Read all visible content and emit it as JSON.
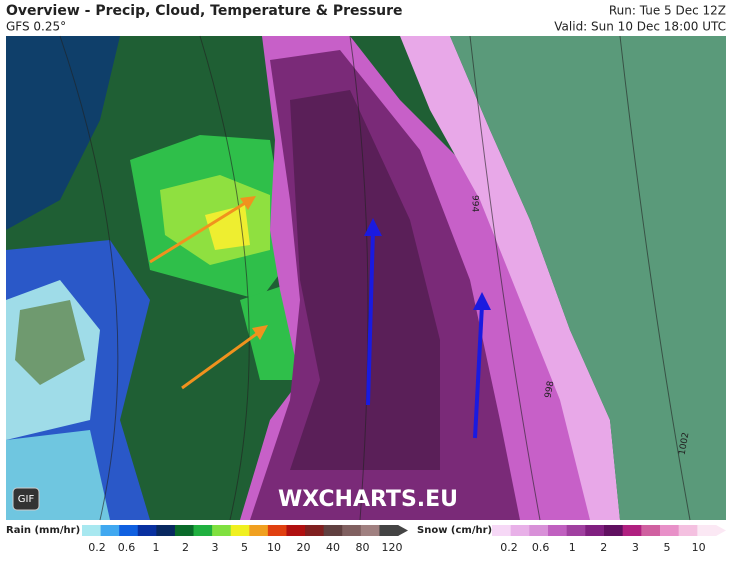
{
  "header": {
    "title": "Overview - Precip, Cloud, Temperature & Pressure",
    "model": "GFS 0.25°",
    "run": "Run: Tue 5 Dec 12Z",
    "valid": "Valid: Sun 10 Dec 18:00 UTC"
  },
  "map": {
    "badge": "GIF",
    "watermark": "WXCHARTS.EU",
    "isobars": [
      "994",
      "998",
      "1002"
    ]
  },
  "legend": {
    "rain": {
      "title": "Rain (mm/hr)",
      "ticks": [
        0.2,
        0.6,
        1,
        2,
        3,
        5,
        10,
        20,
        40,
        80,
        120
      ]
    },
    "snow": {
      "title": "Snow (cm/hr)",
      "ticks": [
        0.2,
        0.6,
        1,
        2,
        3,
        5,
        10
      ]
    }
  }
}
